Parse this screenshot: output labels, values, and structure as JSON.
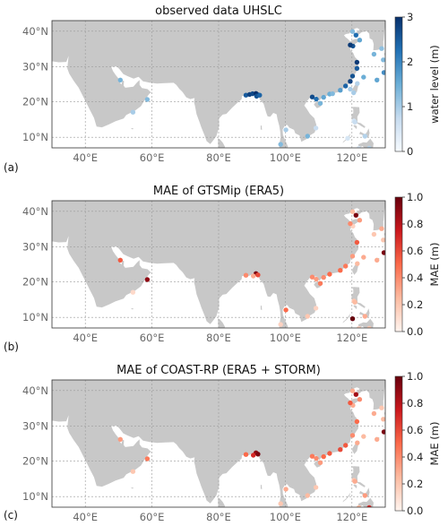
{
  "panels": [
    {
      "id": "a",
      "letter": "(a)",
      "title": "observed data UHSLC",
      "colorbar": {
        "label": "water level (m)",
        "ticks": [
          "0",
          "1",
          "2",
          "3"
        ],
        "min": 0,
        "max": 3,
        "colormap": "Blues"
      },
      "stations": [
        {
          "lon": 50.5,
          "lat": 26.2,
          "v": 1.4
        },
        {
          "lon": 54.3,
          "lat": 17.1,
          "v": 1.0
        },
        {
          "lon": 58.6,
          "lat": 20.7,
          "v": 1.3
        },
        {
          "lon": 88.2,
          "lat": 21.9,
          "v": 2.5
        },
        {
          "lon": 89.3,
          "lat": 22.1,
          "v": 2.8
        },
        {
          "lon": 90.2,
          "lat": 22.3,
          "v": 2.7
        },
        {
          "lon": 91.2,
          "lat": 22.4,
          "v": 3.0
        },
        {
          "lon": 91.8,
          "lat": 22.0,
          "v": 2.9
        },
        {
          "lon": 91.4,
          "lat": 21.6,
          "v": 2.6
        },
        {
          "lon": 92.3,
          "lat": 21.9,
          "v": 2.4
        },
        {
          "lon": 98.6,
          "lat": 8.0,
          "v": 1.3
        },
        {
          "lon": 100.2,
          "lat": 12.1,
          "v": 1.0
        },
        {
          "lon": 106.7,
          "lat": 10.3,
          "v": 1.4
        },
        {
          "lon": 109.2,
          "lat": 12.6,
          "v": 0.7
        },
        {
          "lon": 108.1,
          "lat": 21.4,
          "v": 2.7
        },
        {
          "lon": 109.3,
          "lat": 20.8,
          "v": 2.3
        },
        {
          "lon": 110.5,
          "lat": 19.6,
          "v": 1.4
        },
        {
          "lon": 111.5,
          "lat": 21.3,
          "v": 1.6
        },
        {
          "lon": 113.3,
          "lat": 22.2,
          "v": 1.5
        },
        {
          "lon": 114.2,
          "lat": 22.3,
          "v": 1.3
        },
        {
          "lon": 116.5,
          "lat": 23.3,
          "v": 1.7
        },
        {
          "lon": 118.1,
          "lat": 24.5,
          "v": 2.4
        },
        {
          "lon": 119.5,
          "lat": 25.8,
          "v": 2.8
        },
        {
          "lon": 120.2,
          "lat": 27.3,
          "v": 2.6
        },
        {
          "lon": 121.5,
          "lat": 29.5,
          "v": 2.5
        },
        {
          "lon": 121.5,
          "lat": 31.2,
          "v": 2.9
        },
        {
          "lon": 120.3,
          "lat": 35.8,
          "v": 2.6
        },
        {
          "lon": 119.5,
          "lat": 36.1,
          "v": 2.9
        },
        {
          "lon": 121.2,
          "lat": 38.9,
          "v": 2.3
        },
        {
          "lon": 120.2,
          "lat": 39.9,
          "v": 1.3
        },
        {
          "lon": 122.3,
          "lat": 37.5,
          "v": 1.6
        },
        {
          "lon": 120.5,
          "lat": 22.6,
          "v": 1.0
        },
        {
          "lon": 121.6,
          "lat": 25.2,
          "v": 0.9
        },
        {
          "lon": 119.5,
          "lat": 23.6,
          "v": 1.0
        },
        {
          "lon": 123.5,
          "lat": 27.0,
          "v": 1.5
        },
        {
          "lon": 126.6,
          "lat": 33.5,
          "v": 1.4
        },
        {
          "lon": 128.9,
          "lat": 35.1,
          "v": 1.2
        },
        {
          "lon": 129.6,
          "lat": 28.3,
          "v": 1.9
        },
        {
          "lon": 129.4,
          "lat": 31.9,
          "v": 1.3
        },
        {
          "lon": 120.6,
          "lat": 14.6,
          "v": 0.5
        },
        {
          "lon": 120.9,
          "lat": 14.3,
          "v": 0.7
        },
        {
          "lon": 123.9,
          "lat": 10.3,
          "v": 0.9
        },
        {
          "lon": 125.2,
          "lat": 6.9,
          "v": 0.9
        },
        {
          "lon": 122.1,
          "lat": 6.9,
          "v": 0.4
        },
        {
          "lon": 118.7,
          "lat": 9.7,
          "v": 0.5
        },
        {
          "lon": 127.5,
          "lat": 26.2,
          "v": 1.6
        }
      ]
    },
    {
      "id": "b",
      "letter": "(b)",
      "title": "MAE of GTSMip (ERA5)",
      "colorbar": {
        "label": "MAE (m)",
        "ticks": [
          "0.0",
          "0.2",
          "0.4",
          "0.6",
          "0.8",
          "1.0"
        ],
        "min": 0,
        "max": 1,
        "colormap": "Reds"
      },
      "stations": [
        {
          "lon": 50.5,
          "lat": 26.2,
          "v": 0.55
        },
        {
          "lon": 54.3,
          "lat": 17.1,
          "v": 0.12
        },
        {
          "lon": 58.6,
          "lat": 20.7,
          "v": 0.9
        },
        {
          "lon": 88.2,
          "lat": 21.9,
          "v": 0.4
        },
        {
          "lon": 91.2,
          "lat": 22.4,
          "v": 0.95
        },
        {
          "lon": 91.8,
          "lat": 22.0,
          "v": 0.6
        },
        {
          "lon": 90.4,
          "lat": 21.7,
          "v": 0.3
        },
        {
          "lon": 98.6,
          "lat": 8.0,
          "v": 0.15
        },
        {
          "lon": 100.2,
          "lat": 12.1,
          "v": 0.5
        },
        {
          "lon": 106.7,
          "lat": 10.3,
          "v": 0.2
        },
        {
          "lon": 109.2,
          "lat": 12.6,
          "v": 0.15
        },
        {
          "lon": 108.1,
          "lat": 21.4,
          "v": 0.4
        },
        {
          "lon": 109.3,
          "lat": 20.8,
          "v": 0.35
        },
        {
          "lon": 110.5,
          "lat": 19.6,
          "v": 0.45
        },
        {
          "lon": 111.5,
          "lat": 21.3,
          "v": 0.4
        },
        {
          "lon": 113.3,
          "lat": 22.2,
          "v": 0.5
        },
        {
          "lon": 116.5,
          "lat": 23.3,
          "v": 0.5
        },
        {
          "lon": 118.1,
          "lat": 24.5,
          "v": 0.45
        },
        {
          "lon": 120.2,
          "lat": 27.3,
          "v": 0.35
        },
        {
          "lon": 121.5,
          "lat": 31.2,
          "v": 0.55
        },
        {
          "lon": 120.3,
          "lat": 35.8,
          "v": 0.15
        },
        {
          "lon": 119.5,
          "lat": 36.5,
          "v": 0.4
        },
        {
          "lon": 121.2,
          "lat": 38.9,
          "v": 0.95
        },
        {
          "lon": 120.2,
          "lat": 39.9,
          "v": 0.25
        },
        {
          "lon": 122.3,
          "lat": 37.5,
          "v": 0.35
        },
        {
          "lon": 121.6,
          "lat": 25.2,
          "v": 0.25
        },
        {
          "lon": 123.5,
          "lat": 27.0,
          "v": 0.3
        },
        {
          "lon": 126.6,
          "lat": 33.5,
          "v": 0.2
        },
        {
          "lon": 128.9,
          "lat": 35.1,
          "v": 0.3
        },
        {
          "lon": 129.6,
          "lat": 28.3,
          "v": 0.95
        },
        {
          "lon": 129.4,
          "lat": 31.9,
          "v": 0.2
        },
        {
          "lon": 120.6,
          "lat": 14.6,
          "v": 0.2
        },
        {
          "lon": 120.9,
          "lat": 14.3,
          "v": 0.25
        },
        {
          "lon": 123.9,
          "lat": 10.3,
          "v": 0.3
        },
        {
          "lon": 120.2,
          "lat": 9.6,
          "v": 1.0
        },
        {
          "lon": 122.1,
          "lat": 6.9,
          "v": 0.15
        },
        {
          "lon": 125.2,
          "lat": 6.9,
          "v": 0.2
        },
        {
          "lon": 127.5,
          "lat": 26.2,
          "v": 0.3
        }
      ]
    },
    {
      "id": "c",
      "letter": "(c)",
      "title": "MAE of COAST-RP (ERA5 + STORM)",
      "colorbar": {
        "label": "MAE (m)",
        "ticks": [
          "0.0",
          "0.2",
          "0.4",
          "0.6",
          "0.8",
          "1.0"
        ],
        "min": 0,
        "max": 1,
        "colormap": "Reds"
      },
      "stations": [
        {
          "lon": 50.5,
          "lat": 26.2,
          "v": 0.35
        },
        {
          "lon": 54.3,
          "lat": 17.1,
          "v": 0.2
        },
        {
          "lon": 58.6,
          "lat": 20.7,
          "v": 0.45
        },
        {
          "lon": 88.2,
          "lat": 21.9,
          "v": 0.5
        },
        {
          "lon": 91.2,
          "lat": 22.4,
          "v": 0.9
        },
        {
          "lon": 91.8,
          "lat": 22.0,
          "v": 0.95
        },
        {
          "lon": 90.4,
          "lat": 21.7,
          "v": 0.7
        },
        {
          "lon": 98.6,
          "lat": 8.0,
          "v": 0.2
        },
        {
          "lon": 100.2,
          "lat": 12.1,
          "v": 0.3
        },
        {
          "lon": 106.7,
          "lat": 10.3,
          "v": 0.25
        },
        {
          "lon": 109.2,
          "lat": 12.6,
          "v": 0.2
        },
        {
          "lon": 108.1,
          "lat": 21.4,
          "v": 0.45
        },
        {
          "lon": 109.3,
          "lat": 20.8,
          "v": 0.4
        },
        {
          "lon": 110.5,
          "lat": 19.6,
          "v": 0.35
        },
        {
          "lon": 111.5,
          "lat": 21.3,
          "v": 0.5
        },
        {
          "lon": 113.3,
          "lat": 22.2,
          "v": 0.55
        },
        {
          "lon": 116.5,
          "lat": 23.3,
          "v": 0.6
        },
        {
          "lon": 118.1,
          "lat": 24.5,
          "v": 0.55
        },
        {
          "lon": 120.2,
          "lat": 27.3,
          "v": 0.4
        },
        {
          "lon": 121.5,
          "lat": 31.2,
          "v": 0.5
        },
        {
          "lon": 120.3,
          "lat": 35.8,
          "v": 0.3
        },
        {
          "lon": 119.5,
          "lat": 36.5,
          "v": 0.55
        },
        {
          "lon": 121.2,
          "lat": 38.9,
          "v": 0.85
        },
        {
          "lon": 120.2,
          "lat": 39.9,
          "v": 0.3
        },
        {
          "lon": 122.3,
          "lat": 37.5,
          "v": 0.4
        },
        {
          "lon": 121.6,
          "lat": 25.2,
          "v": 0.3
        },
        {
          "lon": 123.5,
          "lat": 27.0,
          "v": 0.25
        },
        {
          "lon": 126.6,
          "lat": 33.5,
          "v": 0.3
        },
        {
          "lon": 128.9,
          "lat": 35.1,
          "v": 0.2
        },
        {
          "lon": 129.6,
          "lat": 28.3,
          "v": 0.95
        },
        {
          "lon": 129.4,
          "lat": 31.9,
          "v": 0.25
        },
        {
          "lon": 120.6,
          "lat": 14.6,
          "v": 0.2
        },
        {
          "lon": 120.9,
          "lat": 14.3,
          "v": 0.3
        },
        {
          "lon": 123.9,
          "lat": 10.3,
          "v": 0.35
        },
        {
          "lon": 122.1,
          "lat": 6.9,
          "v": 0.25
        },
        {
          "lon": 125.2,
          "lat": 6.9,
          "v": 0.7
        },
        {
          "lon": 127.5,
          "lat": 26.2,
          "v": 0.3
        }
      ]
    }
  ],
  "axis": {
    "xticks": [
      {
        "lon": 40,
        "label": "40°E"
      },
      {
        "lon": 60,
        "label": "60°E"
      },
      {
        "lon": 80,
        "label": "80°E"
      },
      {
        "lon": 100,
        "label": "100°E"
      },
      {
        "lon": 120,
        "label": "120°E"
      }
    ],
    "yticks": [
      {
        "lat": 40,
        "label": "40°N"
      },
      {
        "lat": 30,
        "label": "30°N"
      },
      {
        "lat": 20,
        "label": "20°N"
      },
      {
        "lat": 10,
        "label": "10°N"
      }
    ],
    "lon_range": [
      30,
      130
    ],
    "lat_range": [
      7,
      43
    ]
  },
  "colors": {
    "land": "#c8c8c8",
    "ocean": "#ffffff",
    "grid": "#9a9a9a"
  }
}
